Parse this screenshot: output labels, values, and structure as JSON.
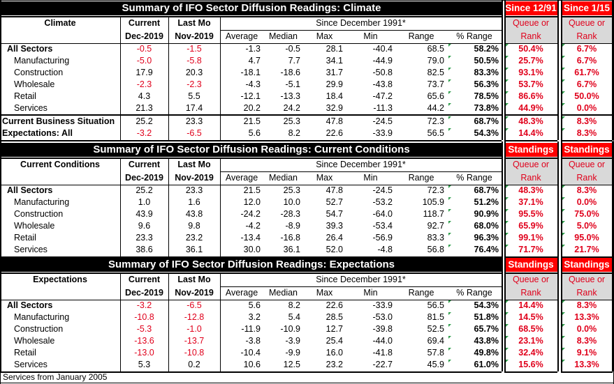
{
  "sections": [
    {
      "title": "Summary of IFO Sector Diffusion Readings: Climate",
      "label": "Climate",
      "right1_header": "Since 12/91",
      "right2_header": "Since 1/15",
      "rows": [
        {
          "name": "All Sectors",
          "bold": true,
          "cur": "-0.5",
          "last": "-1.5",
          "avg": "-1.3",
          "med": "-0.5",
          "max": "28.1",
          "min": "-40.4",
          "range": "68.5",
          "pr": "58.2%",
          "r1": "50.4%",
          "r2": "6.7%",
          "curRed": true,
          "lastRed": true
        },
        {
          "name": "Manufacturing",
          "bold": false,
          "cur": "-5.0",
          "last": "-5.8",
          "avg": "4.7",
          "med": "7.7",
          "max": "34.1",
          "min": "-44.9",
          "range": "79.0",
          "pr": "50.5%",
          "r1": "25.7%",
          "r2": "6.7%",
          "curRed": true,
          "lastRed": true
        },
        {
          "name": "Construction",
          "bold": false,
          "cur": "17.9",
          "last": "20.3",
          "avg": "-18.1",
          "med": "-18.6",
          "max": "31.7",
          "min": "-50.8",
          "range": "82.5",
          "pr": "83.3%",
          "r1": "93.1%",
          "r2": "61.7%",
          "curRed": false,
          "lastRed": false
        },
        {
          "name": "Wholesale",
          "bold": false,
          "cur": "-2.3",
          "last": "-2.3",
          "avg": "-4.3",
          "med": "-5.1",
          "max": "29.9",
          "min": "-43.8",
          "range": "73.7",
          "pr": "56.3%",
          "r1": "53.7%",
          "r2": "6.7%",
          "curRed": true,
          "lastRed": true
        },
        {
          "name": "Retail",
          "bold": false,
          "cur": "4.3",
          "last": "5.5",
          "avg": "-12.1",
          "med": "-13.3",
          "max": "18.4",
          "min": "-47.2",
          "range": "65.6",
          "pr": "78.5%",
          "r1": "86.6%",
          "r2": "50.0%",
          "curRed": false,
          "lastRed": false
        },
        {
          "name": "Services",
          "bold": false,
          "cur": "21.3",
          "last": "17.4",
          "avg": "20.2",
          "med": "24.2",
          "max": "32.9",
          "min": "-11.3",
          "range": "44.2",
          "pr": "73.8%",
          "r1": "44.9%",
          "r2": "0.0%",
          "curRed": false,
          "lastRed": false
        }
      ],
      "extra_rows": [
        {
          "name": "Current Business Situation",
          "cur": "25.2",
          "last": "23.3",
          "avg": "21.5",
          "med": "25.3",
          "max": "47.8",
          "min": "-24.5",
          "range": "72.3",
          "pr": "68.7%",
          "r1": "48.3%",
          "r2": "8.3%",
          "curRed": false,
          "lastRed": false
        },
        {
          "name": "Expectations: All",
          "cur": "-3.2",
          "last": "-6.5",
          "avg": "5.6",
          "med": "8.2",
          "max": "22.6",
          "min": "-33.9",
          "range": "56.5",
          "pr": "54.3%",
          "r1": "14.4%",
          "r2": "8.3%",
          "curRed": true,
          "lastRed": true
        }
      ]
    },
    {
      "title": "Summary of IFO Sector Diffusion Readings: Current Conditions",
      "label": "Current Conditions",
      "right1_header": "Standings",
      "right2_header": "Standings",
      "rows": [
        {
          "name": "All Sectors",
          "bold": true,
          "cur": "25.2",
          "last": "23.3",
          "avg": "21.5",
          "med": "25.3",
          "max": "47.8",
          "min": "-24.5",
          "range": "72.3",
          "pr": "68.7%",
          "r1": "48.3%",
          "r2": "8.3%",
          "curRed": false,
          "lastRed": false
        },
        {
          "name": "Manufacturing",
          "bold": false,
          "cur": "1.0",
          "last": "1.6",
          "avg": "12.0",
          "med": "10.0",
          "max": "52.7",
          "min": "-53.2",
          "range": "105.9",
          "pr": "51.2%",
          "r1": "37.1%",
          "r2": "0.0%",
          "curRed": false,
          "lastRed": false
        },
        {
          "name": "Construction",
          "bold": false,
          "cur": "43.9",
          "last": "43.8",
          "avg": "-24.2",
          "med": "-28.3",
          "max": "54.7",
          "min": "-64.0",
          "range": "118.7",
          "pr": "90.9%",
          "r1": "95.5%",
          "r2": "75.0%",
          "curRed": false,
          "lastRed": false
        },
        {
          "name": "Wholesale",
          "bold": false,
          "cur": "9.6",
          "last": "9.8",
          "avg": "-4.2",
          "med": "-8.9",
          "max": "39.3",
          "min": "-53.4",
          "range": "92.7",
          "pr": "68.0%",
          "r1": "65.9%",
          "r2": "5.0%",
          "curRed": false,
          "lastRed": false
        },
        {
          "name": "Retail",
          "bold": false,
          "cur": "23.3",
          "last": "23.2",
          "avg": "-13.4",
          "med": "-16.8",
          "max": "26.4",
          "min": "-56.9",
          "range": "83.3",
          "pr": "96.3%",
          "r1": "99.1%",
          "r2": "95.0%",
          "curRed": false,
          "lastRed": false
        },
        {
          "name": "Services",
          "bold": false,
          "cur": "38.6",
          "last": "36.1",
          "avg": "30.0",
          "med": "36.1",
          "max": "52.0",
          "min": "-4.8",
          "range": "56.8",
          "pr": "76.4%",
          "r1": "71.7%",
          "r2": "21.7%",
          "curRed": false,
          "lastRed": false
        }
      ],
      "extra_rows": []
    },
    {
      "title": "Summary of IFO Sector Diffusion Readings: Expectations",
      "label": "Expectations",
      "right1_header": "Standings",
      "right2_header": "Standings",
      "rows": [
        {
          "name": "All Sectors",
          "bold": true,
          "cur": "-3.2",
          "last": "-6.5",
          "avg": "5.6",
          "med": "8.2",
          "max": "22.6",
          "min": "-33.9",
          "range": "56.5",
          "pr": "54.3%",
          "r1": "14.4%",
          "r2": "8.3%",
          "curRed": true,
          "lastRed": true
        },
        {
          "name": "Manufacturing",
          "bold": false,
          "cur": "-10.8",
          "last": "-12.8",
          "avg": "3.2",
          "med": "5.4",
          "max": "28.5",
          "min": "-53.0",
          "range": "81.5",
          "pr": "51.8%",
          "r1": "14.5%",
          "r2": "13.3%",
          "curRed": true,
          "lastRed": true
        },
        {
          "name": "Construction",
          "bold": false,
          "cur": "-5.3",
          "last": "-1.0",
          "avg": "-11.9",
          "med": "-10.9",
          "max": "12.7",
          "min": "-39.8",
          "range": "52.5",
          "pr": "65.7%",
          "r1": "68.5%",
          "r2": "0.0%",
          "curRed": true,
          "lastRed": true
        },
        {
          "name": "Wholesale",
          "bold": false,
          "cur": "-13.6",
          "last": "-13.7",
          "avg": "-3.8",
          "med": "-3.9",
          "max": "25.4",
          "min": "-44.0",
          "range": "69.4",
          "pr": "43.8%",
          "r1": "23.1%",
          "r2": "8.3%",
          "curRed": true,
          "lastRed": true
        },
        {
          "name": "Retail",
          "bold": false,
          "cur": "-13.0",
          "last": "-10.8",
          "avg": "-10.4",
          "med": "-9.9",
          "max": "16.0",
          "min": "-41.8",
          "range": "57.8",
          "pr": "49.8%",
          "r1": "32.4%",
          "r2": "9.1%",
          "curRed": true,
          "lastRed": true
        },
        {
          "name": "Services",
          "bold": false,
          "cur": "5.3",
          "last": "0.2",
          "avg": "10.6",
          "med": "12.5",
          "max": "23.2",
          "min": "-22.7",
          "range": "45.9",
          "pr": "61.0%",
          "r1": "15.6%",
          "r2": "13.3%",
          "curRed": false,
          "lastRed": false
        }
      ],
      "extra_rows": []
    }
  ],
  "columns": {
    "current_top": "Current",
    "current_bottom": "Dec-2019",
    "last_top": "Last Mo",
    "last_bottom": "Nov-2019",
    "since": "Since December 1991*",
    "average": "Average",
    "median": "Median",
    "max": "Max",
    "min": "Min",
    "range": "Range",
    "pct_range": "% Range",
    "queue": "Queue or",
    "rank": "Rank"
  },
  "footer": "Services from January 2005",
  "colors": {
    "red": "#e0001b",
    "header_red": "#ff0000",
    "gray": "#d9d9d9",
    "tick": "#2e9c4a"
  }
}
